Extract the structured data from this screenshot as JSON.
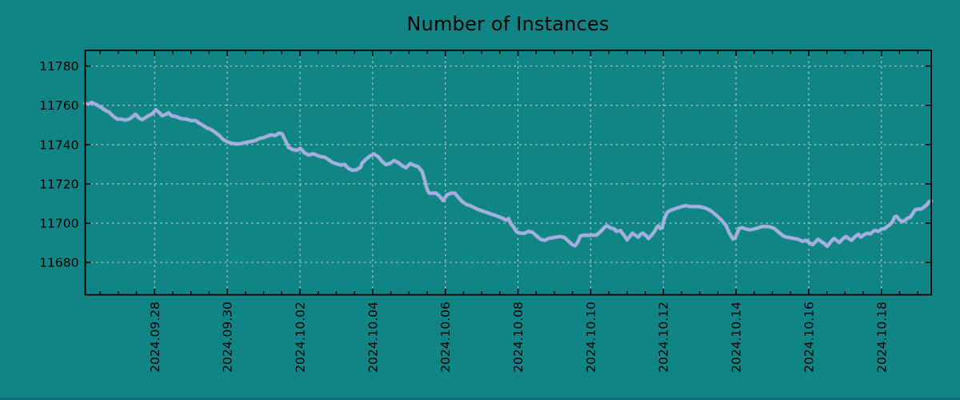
{
  "chart_data": {
    "type": "line",
    "title": "Number of Instances",
    "xlabel": "",
    "ylabel": "",
    "grid": true,
    "legend_position": "none",
    "x_axis_note": "x values are days since 2024-09-26 00:00",
    "xlim": [
      0.09,
      23.37
    ],
    "ylim": [
      11663.5,
      11788.0
    ],
    "y_ticks": [
      {
        "value": 11780,
        "label": "11780"
      },
      {
        "value": 11760,
        "label": "11760"
      },
      {
        "value": 11740,
        "label": "11740"
      },
      {
        "value": 11720,
        "label": "11720"
      },
      {
        "value": 11700,
        "label": "11700"
      },
      {
        "value": 11680,
        "label": "11680"
      }
    ],
    "x_ticks": [
      {
        "day": 2,
        "label": "2024.09.28"
      },
      {
        "day": 4,
        "label": "2024.09.30"
      },
      {
        "day": 6,
        "label": "2024.10.02"
      },
      {
        "day": 8,
        "label": "2024.10.04"
      },
      {
        "day": 10,
        "label": "2024.10.06"
      },
      {
        "day": 12,
        "label": "2024.10.08"
      },
      {
        "day": 14,
        "label": "2024.10.10"
      },
      {
        "day": 16,
        "label": "2024.10.12"
      },
      {
        "day": 18,
        "label": "2024.10.14"
      },
      {
        "day": 20,
        "label": "2024.10.16"
      },
      {
        "day": 22,
        "label": "2024.10.18"
      }
    ],
    "minor_tick_interval_days": 0.5,
    "colors": {
      "background": "#118585",
      "line": "#abade4",
      "line_glow": "#cdcff2",
      "grid": "#ccd2d2",
      "axis": "#000000",
      "text": "#000000",
      "bottom_bar": "#0e6f79"
    },
    "series": [
      {
        "name": "instances",
        "points": [
          [
            0.09,
            11761.0
          ],
          [
            0.18,
            11760.5
          ],
          [
            0.27,
            11761.5
          ],
          [
            0.38,
            11760.5
          ],
          [
            0.53,
            11759.0
          ],
          [
            0.64,
            11757.5
          ],
          [
            0.75,
            11756.5
          ],
          [
            0.86,
            11754.5
          ],
          [
            0.97,
            11753.0
          ],
          [
            1.08,
            11753.0
          ],
          [
            1.19,
            11752.5
          ],
          [
            1.3,
            11753.0
          ],
          [
            1.41,
            11754.5
          ],
          [
            1.48,
            11755.5
          ],
          [
            1.57,
            11753.5
          ],
          [
            1.66,
            11752.7
          ],
          [
            1.77,
            11754.0
          ],
          [
            1.88,
            11755.2
          ],
          [
            1.96,
            11756.0
          ],
          [
            2.03,
            11757.8
          ],
          [
            2.12,
            11756.5
          ],
          [
            2.21,
            11754.7
          ],
          [
            2.32,
            11755.5
          ],
          [
            2.38,
            11756.2
          ],
          [
            2.47,
            11754.7
          ],
          [
            2.6,
            11754.2
          ],
          [
            2.74,
            11753.2
          ],
          [
            2.87,
            11753.0
          ],
          [
            3.0,
            11752.3
          ],
          [
            3.13,
            11752.2
          ],
          [
            3.22,
            11751.0
          ],
          [
            3.33,
            11749.8
          ],
          [
            3.44,
            11748.5
          ],
          [
            3.55,
            11747.7
          ],
          [
            3.66,
            11746.4
          ],
          [
            3.77,
            11744.8
          ],
          [
            3.88,
            11742.7
          ],
          [
            3.99,
            11741.5
          ],
          [
            4.1,
            11740.8
          ],
          [
            4.21,
            11740.4
          ],
          [
            4.32,
            11740.4
          ],
          [
            4.43,
            11740.8
          ],
          [
            4.54,
            11741.2
          ],
          [
            4.65,
            11741.6
          ],
          [
            4.76,
            11742.0
          ],
          [
            4.87,
            11743.0
          ],
          [
            4.98,
            11743.4
          ],
          [
            5.09,
            11744.2
          ],
          [
            5.2,
            11745.0
          ],
          [
            5.31,
            11744.6
          ],
          [
            5.42,
            11745.8
          ],
          [
            5.51,
            11745.5
          ],
          [
            5.6,
            11742.0
          ],
          [
            5.69,
            11738.5
          ],
          [
            5.8,
            11737.5
          ],
          [
            5.91,
            11737.1
          ],
          [
            6.02,
            11738.0
          ],
          [
            6.13,
            11735.7
          ],
          [
            6.24,
            11734.7
          ],
          [
            6.35,
            11735.3
          ],
          [
            6.46,
            11734.6
          ],
          [
            6.57,
            11733.9
          ],
          [
            6.68,
            11733.6
          ],
          [
            6.79,
            11732.3
          ],
          [
            6.9,
            11730.9
          ],
          [
            7.01,
            11730.2
          ],
          [
            7.12,
            11729.6
          ],
          [
            7.23,
            11729.9
          ],
          [
            7.34,
            11727.8
          ],
          [
            7.45,
            11726.9
          ],
          [
            7.56,
            11727.2
          ],
          [
            7.67,
            11728.5
          ],
          [
            7.71,
            11730.5
          ],
          [
            7.82,
            11732.6
          ],
          [
            7.93,
            11734.2
          ],
          [
            8.04,
            11735.2
          ],
          [
            8.15,
            11733.9
          ],
          [
            8.26,
            11731.4
          ],
          [
            8.37,
            11729.8
          ],
          [
            8.48,
            11730.5
          ],
          [
            8.59,
            11731.9
          ],
          [
            8.7,
            11730.9
          ],
          [
            8.81,
            11729.3
          ],
          [
            8.92,
            11728.2
          ],
          [
            9.03,
            11730.3
          ],
          [
            9.14,
            11729.5
          ],
          [
            9.25,
            11728.8
          ],
          [
            9.36,
            11726.4
          ],
          [
            9.43,
            11722.0
          ],
          [
            9.5,
            11717.0
          ],
          [
            9.56,
            11715.2
          ],
          [
            9.65,
            11715.3
          ],
          [
            9.74,
            11715.3
          ],
          [
            9.83,
            11714.0
          ],
          [
            9.94,
            11711.5
          ],
          [
            10.05,
            11714.5
          ],
          [
            10.16,
            11715.3
          ],
          [
            10.27,
            11715.2
          ],
          [
            10.36,
            11713.0
          ],
          [
            10.47,
            11710.9
          ],
          [
            10.58,
            11709.5
          ],
          [
            10.69,
            11708.9
          ],
          [
            10.8,
            11707.9
          ],
          [
            10.91,
            11706.9
          ],
          [
            11.02,
            11706.2
          ],
          [
            11.13,
            11705.5
          ],
          [
            11.24,
            11704.8
          ],
          [
            11.35,
            11704.1
          ],
          [
            11.46,
            11703.4
          ],
          [
            11.57,
            11702.5
          ],
          [
            11.68,
            11701.5
          ],
          [
            11.74,
            11702.3
          ],
          [
            11.81,
            11699.5
          ],
          [
            11.9,
            11697.5
          ],
          [
            11.96,
            11695.6
          ],
          [
            12.07,
            11694.9
          ],
          [
            12.18,
            11694.9
          ],
          [
            12.29,
            11695.8
          ],
          [
            12.4,
            11695.3
          ],
          [
            12.51,
            11693.5
          ],
          [
            12.62,
            11691.8
          ],
          [
            12.73,
            11691.2
          ],
          [
            12.84,
            11692.2
          ],
          [
            12.95,
            11692.6
          ],
          [
            13.06,
            11692.9
          ],
          [
            13.17,
            11693.2
          ],
          [
            13.28,
            11692.6
          ],
          [
            13.39,
            11690.8
          ],
          [
            13.5,
            11689.0
          ],
          [
            13.57,
            11688.5
          ],
          [
            13.64,
            11690.2
          ],
          [
            13.72,
            11693.5
          ],
          [
            13.83,
            11693.9
          ],
          [
            13.94,
            11693.8
          ],
          [
            14.05,
            11693.9
          ],
          [
            14.16,
            11693.9
          ],
          [
            14.27,
            11695.6
          ],
          [
            14.38,
            11697.9
          ],
          [
            14.45,
            11698.7
          ],
          [
            14.54,
            11697.6
          ],
          [
            14.65,
            11697.0
          ],
          [
            14.71,
            11695.8
          ],
          [
            14.82,
            11696.2
          ],
          [
            14.93,
            11693.5
          ],
          [
            15.0,
            11691.5
          ],
          [
            15.09,
            11693.5
          ],
          [
            15.15,
            11694.9
          ],
          [
            15.22,
            11693.9
          ],
          [
            15.31,
            11692.9
          ],
          [
            15.37,
            11694.3
          ],
          [
            15.44,
            11694.9
          ],
          [
            15.53,
            11693.5
          ],
          [
            15.59,
            11692.2
          ],
          [
            15.66,
            11693.5
          ],
          [
            15.75,
            11695.6
          ],
          [
            15.81,
            11697.6
          ],
          [
            15.86,
            11698.6
          ],
          [
            15.92,
            11697.2
          ],
          [
            15.97,
            11698.2
          ],
          [
            16.03,
            11702.4
          ],
          [
            16.1,
            11705.4
          ],
          [
            16.19,
            11706.5
          ],
          [
            16.3,
            11707.2
          ],
          [
            16.41,
            11707.9
          ],
          [
            16.52,
            11708.5
          ],
          [
            16.63,
            11708.9
          ],
          [
            16.74,
            11708.5
          ],
          [
            16.85,
            11708.5
          ],
          [
            16.96,
            11708.5
          ],
          [
            17.07,
            11708.1
          ],
          [
            17.18,
            11707.5
          ],
          [
            17.29,
            11706.5
          ],
          [
            17.4,
            11704.9
          ],
          [
            17.51,
            11703.1
          ],
          [
            17.62,
            11701.1
          ],
          [
            17.73,
            11698.6
          ],
          [
            17.8,
            11695.5
          ],
          [
            17.91,
            11692.0
          ],
          [
            17.97,
            11692.5
          ],
          [
            18.02,
            11694.3
          ],
          [
            18.08,
            11697.3
          ],
          [
            18.17,
            11697.7
          ],
          [
            18.28,
            11697.0
          ],
          [
            18.39,
            11696.6
          ],
          [
            18.5,
            11697.0
          ],
          [
            18.61,
            11697.6
          ],
          [
            18.72,
            11698.3
          ],
          [
            18.83,
            11698.3
          ],
          [
            18.94,
            11698.1
          ],
          [
            19.05,
            11697.3
          ],
          [
            19.16,
            11695.6
          ],
          [
            19.27,
            11693.8
          ],
          [
            19.38,
            11692.9
          ],
          [
            19.49,
            11692.6
          ],
          [
            19.6,
            11692.2
          ],
          [
            19.71,
            11691.8
          ],
          [
            19.82,
            11690.8
          ],
          [
            19.93,
            11691.2
          ],
          [
            20.04,
            11689.8
          ],
          [
            20.11,
            11689.0
          ],
          [
            20.18,
            11690.4
          ],
          [
            20.26,
            11691.8
          ],
          [
            20.33,
            11690.8
          ],
          [
            20.44,
            11689.4
          ],
          [
            20.51,
            11688.2
          ],
          [
            20.62,
            11690.8
          ],
          [
            20.7,
            11692.2
          ],
          [
            20.77,
            11691.2
          ],
          [
            20.84,
            11690.2
          ],
          [
            20.95,
            11692.2
          ],
          [
            21.03,
            11693.2
          ],
          [
            21.1,
            11692.2
          ],
          [
            21.17,
            11691.2
          ],
          [
            21.28,
            11693.2
          ],
          [
            21.37,
            11694.3
          ],
          [
            21.43,
            11692.9
          ],
          [
            21.54,
            11694.3
          ],
          [
            21.61,
            11694.9
          ],
          [
            21.7,
            11694.5
          ],
          [
            21.76,
            11695.6
          ],
          [
            21.83,
            11696.3
          ],
          [
            21.92,
            11695.8
          ],
          [
            21.98,
            11696.7
          ],
          [
            22.09,
            11697.3
          ],
          [
            22.16,
            11698.3
          ],
          [
            22.25,
            11699.4
          ],
          [
            22.31,
            11700.8
          ],
          [
            22.36,
            11703.1
          ],
          [
            22.42,
            11703.5
          ],
          [
            22.49,
            11701.8
          ],
          [
            22.58,
            11700.8
          ],
          [
            22.65,
            11701.3
          ],
          [
            22.71,
            11702.4
          ],
          [
            22.8,
            11703.1
          ],
          [
            22.87,
            11705.1
          ],
          [
            22.93,
            11706.8
          ],
          [
            23.02,
            11707.2
          ],
          [
            23.09,
            11707.2
          ],
          [
            23.15,
            11707.9
          ],
          [
            23.24,
            11709.2
          ],
          [
            23.31,
            11710.9
          ],
          [
            23.37,
            11711.3
          ]
        ]
      }
    ]
  }
}
